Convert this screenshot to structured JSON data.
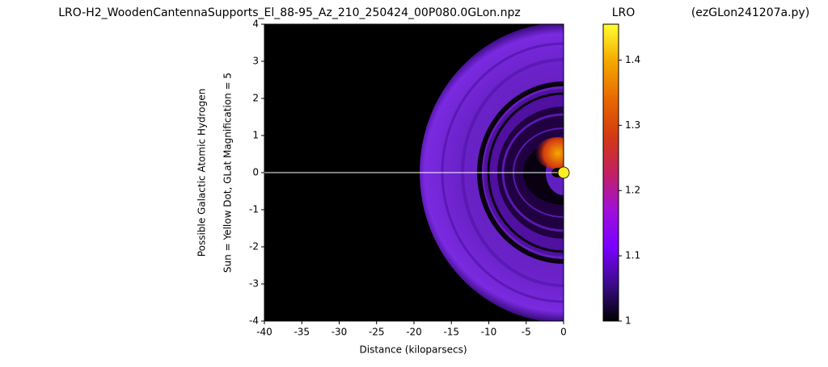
{
  "chart_data": {
    "type": "heatmap",
    "title": "LRO-H2_WoodenCantennaSupports_El_88-95_Az_210_250424_00P080.0GLon.npz",
    "colorbar_title": "LRO",
    "script_name": "(ezGLon241207a.py)",
    "xlabel": "Distance (kiloparsecs)",
    "ylabel": [
      "Possible Galactic Atomic Hydrogen",
      "Sun = Yellow Dot, GLat Magnification = 5"
    ],
    "xlim": [
      -40,
      0
    ],
    "xticks": [
      -40,
      -35,
      -30,
      -25,
      -20,
      -15,
      -10,
      -5,
      0
    ],
    "ylim": [
      -4,
      4
    ],
    "yticks": [
      -4,
      -3,
      -2,
      -1,
      0,
      1,
      2,
      3,
      4
    ],
    "clim": [
      1.0,
      1.455
    ],
    "cticks": [
      1.0,
      1.1,
      1.2,
      1.3,
      1.4
    ],
    "colormap": [
      "#000000",
      "#3c0c8c",
      "#7a00ff",
      "#a010d8",
      "#c42060",
      "#d43a10",
      "#e86a00",
      "#f5a800",
      "#ffff30"
    ],
    "sun": {
      "x": 0,
      "y": 0,
      "color": "#ffee22"
    }
  }
}
